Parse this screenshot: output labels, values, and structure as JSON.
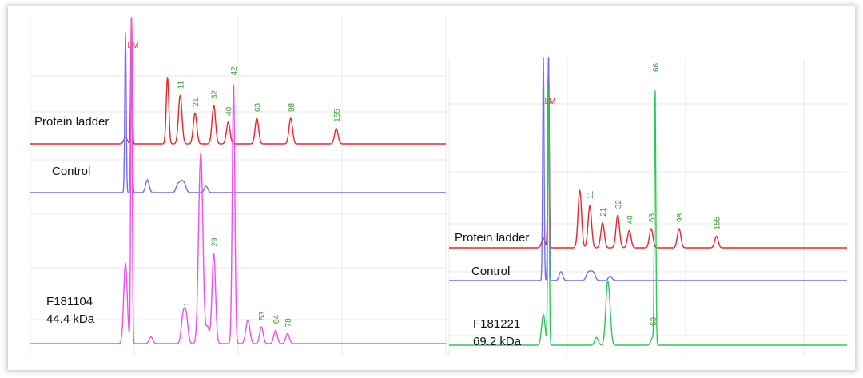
{
  "colors": {
    "ladder": "#e8262b",
    "control": "#6f6ff0",
    "sample_a": "#ee4ff0",
    "sample_b": "#2fc659",
    "peak_label": "#35a035",
    "lm_label": "#e03030",
    "grid": "#e9e9e9"
  },
  "chart_data": [
    {
      "type": "line",
      "panel": "left",
      "title": "",
      "xlabel": "",
      "ylabel": "",
      "grid": true,
      "series": [
        {
          "name": "Protein ladder",
          "label_lines": [
            "Protein ladder"
          ],
          "color": "#e8262b",
          "peaks": [
            {
              "x": 0.0,
              "h": 0.05
            },
            {
              "x": 0.017,
              "h": 1.0
            },
            {
              "x": 0.119,
              "h": 0.52
            },
            {
              "x": 0.155,
              "h": 0.38
            },
            {
              "x": 0.197,
              "h": 0.24
            },
            {
              "x": 0.25,
              "h": 0.3
            },
            {
              "x": 0.291,
              "h": 0.17
            },
            {
              "x": 0.372,
              "h": 0.2
            },
            {
              "x": 0.468,
              "h": 0.2
            },
            {
              "x": 0.597,
              "h": 0.12
            }
          ],
          "labels": [
            {
              "x": 0.017,
              "text": "LM",
              "kind": "lm"
            },
            {
              "x": 0.155,
              "text": "11"
            },
            {
              "x": 0.197,
              "text": "21"
            },
            {
              "x": 0.25,
              "text": "32"
            },
            {
              "x": 0.291,
              "text": "40"
            },
            {
              "x": 0.372,
              "text": "63"
            },
            {
              "x": 0.468,
              "text": "98"
            },
            {
              "x": 0.597,
              "text": "155"
            }
          ]
        },
        {
          "name": "Control",
          "label_lines": [
            "Control"
          ],
          "color": "#6f6ff0",
          "peaks": [
            {
              "x": 0.0,
              "h": 1.0
            },
            {
              "x": 0.017,
              "h": 1.0
            },
            {
              "x": 0.062,
              "h": 0.08
            },
            {
              "x": 0.148,
              "h": 0.05
            },
            {
              "x": 0.158,
              "h": 0.06
            },
            {
              "x": 0.167,
              "h": 0.05
            },
            {
              "x": 0.228,
              "h": 0.04
            }
          ],
          "labels": []
        },
        {
          "name": "F181104",
          "label_lines": [
            "F181104",
            "44.4 kDa"
          ],
          "color": "#ee4ff0",
          "peaks": [
            {
              "x": 0.0,
              "h": 0.24
            },
            {
              "x": 0.017,
              "h": 1.0
            },
            {
              "x": 0.072,
              "h": 0.02
            },
            {
              "x": 0.163,
              "h": 0.08
            },
            {
              "x": 0.172,
              "h": 0.08
            },
            {
              "x": 0.21,
              "h": 0.33
            },
            {
              "x": 0.216,
              "h": 0.35
            },
            {
              "x": 0.232,
              "h": 0.05
            },
            {
              "x": 0.25,
              "h": 0.27
            },
            {
              "x": 0.306,
              "h": 0.78
            },
            {
              "x": 0.344,
              "h": 0.04
            },
            {
              "x": 0.349,
              "h": 0.04
            },
            {
              "x": 0.385,
              "h": 0.05
            },
            {
              "x": 0.425,
              "h": 0.04
            },
            {
              "x": 0.459,
              "h": 0.03
            }
          ],
          "labels": [
            {
              "x": 0.172,
              "text": "11"
            },
            {
              "x": 0.25,
              "text": "29"
            },
            {
              "x": 0.306,
              "text": "42"
            },
            {
              "x": 0.385,
              "text": "53"
            },
            {
              "x": 0.425,
              "text": "64"
            },
            {
              "x": 0.459,
              "text": "78"
            }
          ]
        }
      ]
    },
    {
      "type": "line",
      "panel": "right",
      "title": "",
      "xlabel": "",
      "ylabel": "",
      "grid": true,
      "series": [
        {
          "name": "Protein ladder",
          "label_lines": [
            "Protein ladder"
          ],
          "color": "#e8262b",
          "peaks": [
            {
              "x": 0.0,
              "h": 0.05
            },
            {
              "x": 0.017,
              "h": 1.0
            },
            {
              "x": 0.12,
              "h": 0.3
            },
            {
              "x": 0.153,
              "h": 0.22
            },
            {
              "x": 0.195,
              "h": 0.13
            },
            {
              "x": 0.245,
              "h": 0.17
            },
            {
              "x": 0.283,
              "h": 0.09
            },
            {
              "x": 0.355,
              "h": 0.1
            },
            {
              "x": 0.447,
              "h": 0.1
            },
            {
              "x": 0.57,
              "h": 0.06
            }
          ],
          "labels": [
            {
              "x": 0.017,
              "text": "LM",
              "kind": "lm"
            },
            {
              "x": 0.153,
              "text": "11"
            },
            {
              "x": 0.195,
              "text": "21"
            },
            {
              "x": 0.245,
              "text": "32"
            },
            {
              "x": 0.283,
              "text": "40"
            },
            {
              "x": 0.355,
              "text": "63"
            },
            {
              "x": 0.447,
              "text": "98"
            },
            {
              "x": 0.57,
              "text": "155"
            }
          ]
        },
        {
          "name": "Control",
          "label_lines": [
            "Control"
          ],
          "color": "#6f6ff0",
          "peaks": [
            {
              "x": 0.0,
              "h": 1.0
            },
            {
              "x": 0.017,
              "h": 1.0
            },
            {
              "x": 0.058,
              "h": 0.04
            },
            {
              "x": 0.146,
              "h": 0.03
            },
            {
              "x": 0.156,
              "h": 0.03
            },
            {
              "x": 0.166,
              "h": 0.03
            },
            {
              "x": 0.22,
              "h": 0.02
            }
          ],
          "labels": []
        },
        {
          "name": "F181221",
          "label_lines": [
            "F181221",
            "69.2 kDa"
          ],
          "color": "#2fc659",
          "peaks": [
            {
              "x": 0.0,
              "h": 0.12
            },
            {
              "x": 0.017,
              "h": 1.0
            },
            {
              "x": 0.175,
              "h": 0.03
            },
            {
              "x": 0.21,
              "h": 0.18
            },
            {
              "x": 0.217,
              "h": 0.12
            },
            {
              "x": 0.36,
              "h": 0.03
            },
            {
              "x": 0.368,
              "h": 1.0
            }
          ],
          "labels": [
            {
              "x": 0.368,
              "text": "66",
              "pos": "top"
            },
            {
              "x": 0.36,
              "text": "63",
              "pos": "side"
            }
          ]
        }
      ]
    }
  ]
}
